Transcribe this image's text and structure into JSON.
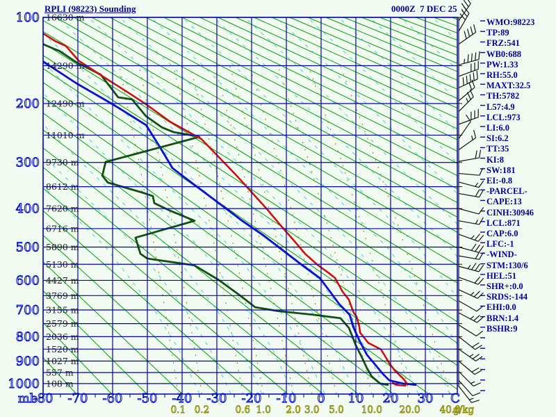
{
  "header": {
    "title": "RPLI (98223) Sounding",
    "datetime": "0000Z  7 DEC 25"
  },
  "sidebar": {
    "indices": [
      "WMO:98223",
      "TP:89",
      "FRZ:541",
      "WB0:688",
      "PW:1.33",
      "RH:55.0",
      "MAXT:32.5",
      "TH:5782",
      "L57:4.9",
      "LCL:973",
      "LI:6.0",
      "SI:6.2",
      "TT:35",
      "KI:8",
      "SW:181",
      "EI:-0.8",
      "-PARCEL-",
      "CAPE:13",
      "CINH:30946",
      "LCL:871",
      "CAP:6.0",
      "LFC:-1",
      "-WIND-",
      "STM:130/6",
      "HEL:51",
      "SHR+:0.0",
      "SRDS:-144",
      "EHI:0.0",
      "BRN:1.4",
      "BSHR:9"
    ]
  },
  "chart_data": {
    "type": "line",
    "title": "RPLI (98223) Sounding",
    "subtitle": "0000Z 7 DEC 25",
    "projection": "stuve",
    "x_axis": {
      "label": "C",
      "units": "deg C",
      "ticks": [
        -80,
        -70,
        -60,
        -50,
        -40,
        -30,
        -20,
        -10,
        0,
        10,
        20,
        30
      ],
      "range": [
        -80,
        39.2
      ],
      "axis_prefix_label": "mb"
    },
    "y_axis": {
      "label": "mb",
      "units": "hPa",
      "major_ticks": [
        100,
        200,
        300,
        400,
        500,
        600,
        700,
        800,
        900,
        1000
      ],
      "minor_step": 50,
      "range": [
        100,
        1048
      ],
      "scale": "linear in p^0.2857"
    },
    "altitude_labels": [
      {
        "p": 100,
        "label": "16630 m"
      },
      {
        "p": 150,
        "label": "14290 m"
      },
      {
        "p": 200,
        "label": "12490 m"
      },
      {
        "p": 250,
        "label": "11010 m"
      },
      {
        "p": 300,
        "label": "9730 m"
      },
      {
        "p": 350,
        "label": "8612 m"
      },
      {
        "p": 400,
        "label": "7620 m"
      },
      {
        "p": 450,
        "label": "6716 m"
      },
      {
        "p": 500,
        "label": "5890 m"
      },
      {
        "p": 550,
        "label": "5130 m"
      },
      {
        "p": 600,
        "label": "4427 m"
      },
      {
        "p": 650,
        "label": "3769 m"
      },
      {
        "p": 700,
        "label": "3155 m"
      },
      {
        "p": 750,
        "label": "2579 m"
      },
      {
        "p": 800,
        "label": "2036 m"
      },
      {
        "p": 850,
        "label": "1520 m"
      },
      {
        "p": 900,
        "label": "1027 m"
      },
      {
        "p": 950,
        "label": "557 m"
      },
      {
        "p": 1000,
        "label": "108 m"
      }
    ],
    "mixing_ratio": {
      "unit_label": "g/kg",
      "values": [
        0.1,
        0.2,
        0.6,
        1.0,
        2.0,
        3.0,
        5.0,
        10.0,
        20.0,
        40.0
      ],
      "labels": [
        "0.1",
        "0.2",
        "0.6",
        "1.0",
        "2.0",
        "3.0",
        "5.0",
        "10.0",
        "20.0",
        "40.0"
      ]
    },
    "dry_adiabats": {
      "theta_min_K": 190,
      "theta_max_K": 620,
      "step_K": 10
    },
    "moist_adiabats": {
      "anchor_pressures": [
        1048,
        850,
        700,
        500,
        300,
        150,
        100
      ],
      "delta_T": [
        0,
        -6,
        -13,
        -27,
        -52,
        -80,
        -95
      ],
      "t0_min": -35,
      "t0_max": 140,
      "step": 9
    },
    "series": [
      {
        "name": "temperature",
        "color": "#cc1111",
        "points": [
          [
            -80,
            115
          ],
          [
            -76.4,
            123
          ],
          [
            -73.4,
            128
          ],
          [
            -69.8,
            144
          ],
          [
            -65,
            157
          ],
          [
            -60.4,
            170
          ],
          [
            -55,
            186
          ],
          [
            -50.4,
            201
          ],
          [
            -43.4,
            228
          ],
          [
            -34.4,
            257
          ],
          [
            -29.4,
            290
          ],
          [
            -24.5,
            325
          ],
          [
            -20,
            362
          ],
          [
            -15.5,
            402
          ],
          [
            -11.8,
            440
          ],
          [
            -8,
            480
          ],
          [
            -4.5,
            520
          ],
          [
            -1,
            552
          ],
          [
            2,
            575
          ],
          [
            4,
            592
          ],
          [
            6.2,
            637
          ],
          [
            8,
            664
          ],
          [
            8.8,
            691
          ],
          [
            9.4,
            710
          ],
          [
            10.2,
            724
          ],
          [
            11,
            761
          ],
          [
            11.2,
            784
          ],
          [
            13.6,
            825
          ],
          [
            17.2,
            851
          ],
          [
            18.2,
            874
          ],
          [
            19.6,
            909
          ],
          [
            21.2,
            941
          ],
          [
            23.6,
            977
          ],
          [
            24.6,
            997
          ],
          [
            24.2,
            1010
          ],
          [
            21.6,
            1006
          ],
          [
            20.6,
            997
          ]
        ]
      },
      {
        "name": "dewpoint",
        "color": "#134f13",
        "points": [
          [
            -80,
            126
          ],
          [
            -76.8,
            131
          ],
          [
            -75.4,
            133
          ],
          [
            -70.4,
            146
          ],
          [
            -63.4,
            161
          ],
          [
            -58.4,
            191
          ],
          [
            -54.4,
            194
          ],
          [
            -50.4,
            219
          ],
          [
            -45.8,
            237
          ],
          [
            -42.4,
            245
          ],
          [
            -38.4,
            249
          ],
          [
            -35,
            253
          ],
          [
            -62,
            299
          ],
          [
            -62.8,
            322
          ],
          [
            -63,
            326
          ],
          [
            -61.4,
            341
          ],
          [
            -51.4,
            363
          ],
          [
            -48.4,
            371
          ],
          [
            -48,
            387
          ],
          [
            -44,
            403
          ],
          [
            -36.4,
            430
          ],
          [
            -53.4,
            474
          ],
          [
            -52,
            519
          ],
          [
            -50,
            533
          ],
          [
            -36.5,
            553
          ],
          [
            -29.4,
            599
          ],
          [
            -23.4,
            649
          ],
          [
            -19,
            690
          ],
          [
            -12.4,
            704
          ],
          [
            -2.4,
            717
          ],
          [
            5.6,
            730
          ],
          [
            8,
            766
          ],
          [
            9.2,
            806
          ],
          [
            10,
            835
          ],
          [
            11.6,
            880
          ],
          [
            13.2,
            931
          ],
          [
            14.6,
            968
          ],
          [
            17,
            1000
          ],
          [
            19.2,
            1006
          ]
        ]
      },
      {
        "name": "parcel",
        "color": "#1111cc",
        "points": [
          [
            -80,
            145
          ],
          [
            -70.4,
            172
          ],
          [
            -61,
            198
          ],
          [
            -58.4,
            206
          ],
          [
            -50.4,
            233
          ],
          [
            -46.5,
            270
          ],
          [
            -42.8,
            311
          ],
          [
            -36.8,
            344
          ],
          [
            -29.4,
            387
          ],
          [
            -23,
            428
          ],
          [
            -17,
            465
          ],
          [
            -11.8,
            503
          ],
          [
            -6,
            548
          ],
          [
            -0.4,
            592
          ],
          [
            2.6,
            637
          ],
          [
            5.2,
            679
          ],
          [
            8.2,
            717
          ],
          [
            9.2,
            761
          ],
          [
            11,
            815
          ],
          [
            13.2,
            874
          ],
          [
            15.6,
            916
          ],
          [
            17.6,
            953
          ],
          [
            19.6,
            985
          ],
          [
            23.6,
            1000
          ],
          [
            27.2,
            1006
          ]
        ]
      },
      {
        "name": "wetbulb",
        "color": "#44aadd",
        "derived_from": "parcel",
        "offset_T": 0.5,
        "max_p": 920
      }
    ],
    "wind_barbs": [
      {
        "p": 103,
        "rot": 35,
        "full": 3,
        "half": 1
      },
      {
        "p": 113,
        "rot": 30,
        "full": 3,
        "half": 0
      },
      {
        "p": 126,
        "rot": 55,
        "full": 4,
        "half": 0
      },
      {
        "p": 149,
        "rot": 75,
        "full": 4,
        "half": 1
      },
      {
        "p": 163,
        "rot": 70,
        "full": 3,
        "half": 0
      },
      {
        "p": 178,
        "rot": 65,
        "full": 5,
        "half": 0
      },
      {
        "p": 196,
        "rot": 50,
        "full": 2,
        "half": 0
      },
      {
        "p": 212,
        "rot": 45,
        "full": 2,
        "half": 1
      },
      {
        "p": 232,
        "rot": 70,
        "full": 3,
        "half": 0
      },
      {
        "p": 256,
        "rot": 35,
        "full": 1,
        "half": 0
      },
      {
        "p": 276,
        "rot": 55,
        "full": 1,
        "half": 1
      },
      {
        "p": 298,
        "rot": 80,
        "full": 2,
        "half": 0
      },
      {
        "p": 322,
        "rot": 95,
        "full": 1,
        "half": 0
      },
      {
        "p": 340,
        "rot": 105,
        "full": 1,
        "half": 1
      },
      {
        "p": 365,
        "rot": 100,
        "full": 2,
        "half": 0
      },
      {
        "p": 400,
        "rot": 105,
        "full": 1,
        "half": 0
      },
      {
        "p": 430,
        "rot": 100,
        "full": 1,
        "half": 1
      },
      {
        "p": 465,
        "rot": 110,
        "full": 2,
        "half": 1
      },
      {
        "p": 500,
        "rot": 105,
        "full": 3,
        "half": 0
      },
      {
        "p": 525,
        "rot": 100,
        "full": 2,
        "half": 0
      },
      {
        "p": 556,
        "rot": 105,
        "full": 3,
        "half": 1
      },
      {
        "p": 590,
        "rot": 110,
        "full": 2,
        "half": 0
      },
      {
        "p": 630,
        "rot": 115,
        "full": 2,
        "half": 1
      },
      {
        "p": 668,
        "rot": 120,
        "full": 1,
        "half": 0
      },
      {
        "p": 710,
        "rot": 118,
        "full": 2,
        "half": 1
      },
      {
        "p": 755,
        "rot": 122,
        "full": 1,
        "half": 0
      },
      {
        "p": 800,
        "rot": 128,
        "full": 2,
        "half": 0
      },
      {
        "p": 850,
        "rot": 125,
        "full": 2,
        "half": 1
      },
      {
        "p": 900,
        "rot": 130,
        "full": 2,
        "half": 0
      },
      {
        "p": 945,
        "rot": 135,
        "full": 1,
        "half": 1
      },
      {
        "p": 985,
        "rot": 138,
        "full": 1,
        "half": 0
      },
      {
        "p": 1012,
        "rot": 142,
        "full": 1,
        "half": 1
      }
    ],
    "colors": {
      "grid": "#0000b8",
      "dry_adiabat": "#00a000",
      "moist_adiabat": "#2cc6c6",
      "mixing_ratio": "#8b8b00",
      "temperature": "#cc1111",
      "dewpoint": "#134f13",
      "parcel": "#1111cc",
      "wetbulb": "#44aadd",
      "barbs": "#141414",
      "header_text": "#000099",
      "background": "#f2fbf2"
    }
  }
}
